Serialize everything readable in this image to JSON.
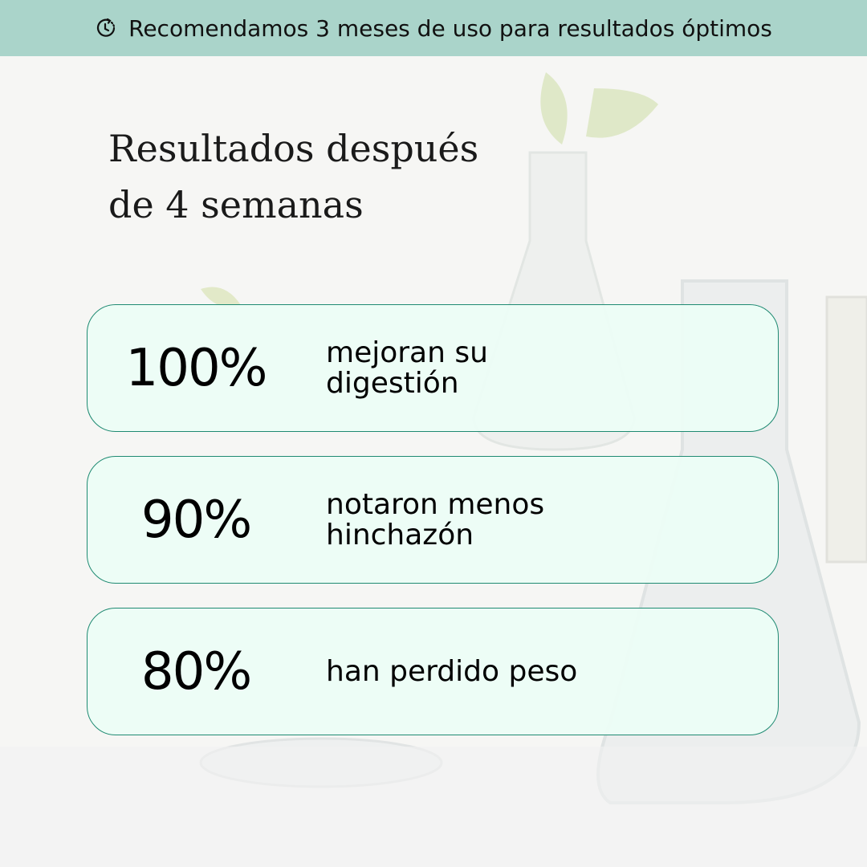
{
  "banner": {
    "icon": "clock-refresh-icon",
    "text": "Recomendamos 3 meses de uso para resultados óptimos"
  },
  "title": {
    "line1": "Resultados después",
    "line2": "de 4 semanas"
  },
  "stats": [
    {
      "value": "100%",
      "label": "mejoran su digestión"
    },
    {
      "value": "90%",
      "label": "notaron menos hinchazón"
    },
    {
      "value": "80%",
      "label": "han perdido peso"
    }
  ],
  "colors": {
    "banner": "#aad4ca",
    "card_fill": "#ecfdf5",
    "card_border": "#1f8a72"
  }
}
